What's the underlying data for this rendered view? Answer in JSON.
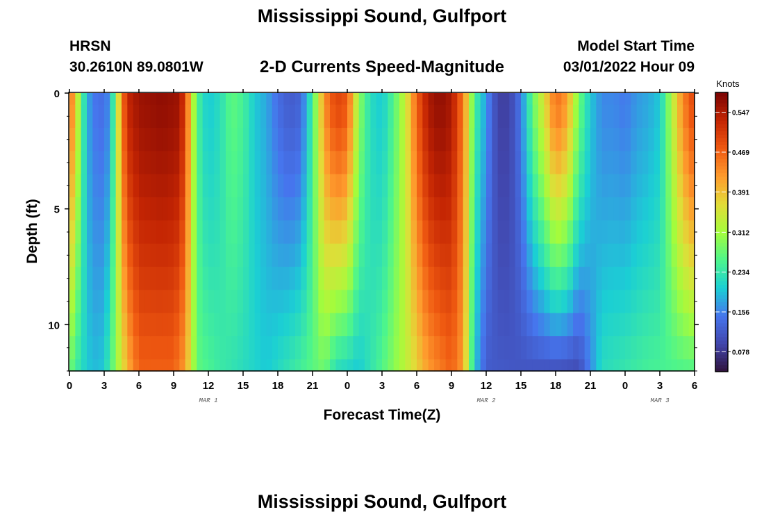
{
  "title": "Mississippi Sound, Gulfport",
  "title_repeat": "Mississippi Sound, Gulfport",
  "station_id": "HRSN",
  "station_coords": "30.2610N  89.0801W",
  "subtitle": "2-D Currents Speed-Magnitude",
  "model_start_label": "Model Start Time",
  "model_start_value": "03/01/2022 Hour 09",
  "chart_data": {
    "type": "heatmap",
    "xlabel": "Forecast Time(Z)",
    "ylabel": "Depth (ft)",
    "x_range_hours": [
      0,
      54
    ],
    "y_range_ft": [
      0,
      12
    ],
    "x_tick_labels": [
      "0",
      "3",
      "6",
      "9",
      "12",
      "15",
      "18",
      "21",
      "0",
      "3",
      "6",
      "9",
      "12",
      "15",
      "18",
      "21",
      "0",
      "3",
      "6"
    ],
    "y_tick_labels": [
      "0",
      "5",
      "10"
    ],
    "date_labels": [
      {
        "text": "MAR 1",
        "hour": 12
      },
      {
        "text": "MAR 2",
        "hour": 36
      },
      {
        "text": "MAR 3",
        "hour": 51
      }
    ],
    "colorbar": {
      "title": "Knots",
      "min": 0.039,
      "max": 0.586,
      "tick_labels": [
        "0.547",
        "0.469",
        "0.391",
        "0.312",
        "0.234",
        "0.156",
        "0.078"
      ],
      "tick_values": [
        0.547,
        0.469,
        0.391,
        0.312,
        0.234,
        0.156,
        0.078
      ]
    },
    "depth_levels_ft": [
      0,
      0.5,
      1.5,
      2.5,
      3.5,
      4.5,
      5.5,
      6.5,
      7.5,
      8.5,
      9.5,
      10.5,
      11.5,
      12
    ],
    "surface_speed_knots_by_hour": [
      {
        "hour": 0,
        "value": 0.47
      },
      {
        "hour": 0.5,
        "value": 0.39
      },
      {
        "hour": 1,
        "value": 0.27
      },
      {
        "hour": 1.5,
        "value": 0.19
      },
      {
        "hour": 2,
        "value": 0.15
      },
      {
        "hour": 3,
        "value": 0.14
      },
      {
        "hour": 3.5,
        "value": 0.17
      },
      {
        "hour": 4,
        "value": 0.3
      },
      {
        "hour": 4.5,
        "value": 0.44
      },
      {
        "hour": 5,
        "value": 0.53
      },
      {
        "hour": 6,
        "value": 0.56
      },
      {
        "hour": 8,
        "value": 0.57
      },
      {
        "hour": 9.5,
        "value": 0.56
      },
      {
        "hour": 10,
        "value": 0.5
      },
      {
        "hour": 10.5,
        "value": 0.37
      },
      {
        "hour": 11,
        "value": 0.26
      },
      {
        "hour": 11.5,
        "value": 0.22
      },
      {
        "hour": 12,
        "value": 0.2
      },
      {
        "hour": 13,
        "value": 0.22
      },
      {
        "hour": 14,
        "value": 0.27
      },
      {
        "hour": 15,
        "value": 0.25
      },
      {
        "hour": 16,
        "value": 0.2
      },
      {
        "hour": 17,
        "value": 0.18
      },
      {
        "hour": 18,
        "value": 0.14
      },
      {
        "hour": 19,
        "value": 0.12
      },
      {
        "hour": 20,
        "value": 0.13
      },
      {
        "hour": 21,
        "value": 0.25
      },
      {
        "hour": 22,
        "value": 0.43
      },
      {
        "hour": 23,
        "value": 0.5
      },
      {
        "hour": 24,
        "value": 0.48
      },
      {
        "hour": 25,
        "value": 0.3
      },
      {
        "hour": 26,
        "value": 0.22
      },
      {
        "hour": 27,
        "value": 0.2
      },
      {
        "hour": 28,
        "value": 0.26
      },
      {
        "hour": 29,
        "value": 0.34
      },
      {
        "hour": 30,
        "value": 0.47
      },
      {
        "hour": 31,
        "value": 0.55
      },
      {
        "hour": 32,
        "value": 0.57
      },
      {
        "hour": 33,
        "value": 0.55
      },
      {
        "hour": 34,
        "value": 0.45
      },
      {
        "hour": 35,
        "value": 0.25
      },
      {
        "hour": 36,
        "value": 0.17
      },
      {
        "hour": 37,
        "value": 0.09
      },
      {
        "hour": 38,
        "value": 0.09
      },
      {
        "hour": 39,
        "value": 0.15
      },
      {
        "hour": 40,
        "value": 0.27
      },
      {
        "hour": 41,
        "value": 0.36
      },
      {
        "hour": 42,
        "value": 0.46
      },
      {
        "hour": 43,
        "value": 0.42
      },
      {
        "hour": 44,
        "value": 0.28
      },
      {
        "hour": 45,
        "value": 0.2
      },
      {
        "hour": 46,
        "value": 0.16
      },
      {
        "hour": 47,
        "value": 0.16
      },
      {
        "hour": 48,
        "value": 0.15
      },
      {
        "hour": 49,
        "value": 0.17
      },
      {
        "hour": 50,
        "value": 0.18
      },
      {
        "hour": 51,
        "value": 0.2
      },
      {
        "hour": 52,
        "value": 0.32
      },
      {
        "hour": 53,
        "value": 0.44
      },
      {
        "hour": 54,
        "value": 0.5
      }
    ],
    "bottom_speed_knots_by_hour": [
      {
        "hour": 0,
        "value": 0.28
      },
      {
        "hour": 1,
        "value": 0.22
      },
      {
        "hour": 2,
        "value": 0.19
      },
      {
        "hour": 3,
        "value": 0.2
      },
      {
        "hour": 4,
        "value": 0.3
      },
      {
        "hour": 5,
        "value": 0.4
      },
      {
        "hour": 6,
        "value": 0.47
      },
      {
        "hour": 9,
        "value": 0.47
      },
      {
        "hour": 10,
        "value": 0.42
      },
      {
        "hour": 11,
        "value": 0.27
      },
      {
        "hour": 13,
        "value": 0.24
      },
      {
        "hour": 15,
        "value": 0.22
      },
      {
        "hour": 17,
        "value": 0.2
      },
      {
        "hour": 20,
        "value": 0.25
      },
      {
        "hour": 22,
        "value": 0.28
      },
      {
        "hour": 23,
        "value": 0.22
      },
      {
        "hour": 25,
        "value": 0.2
      },
      {
        "hour": 27,
        "value": 0.26
      },
      {
        "hour": 29,
        "value": 0.33
      },
      {
        "hour": 31,
        "value": 0.42
      },
      {
        "hour": 33,
        "value": 0.47
      },
      {
        "hour": 34,
        "value": 0.42
      },
      {
        "hour": 35,
        "value": 0.2
      },
      {
        "hour": 36,
        "value": 0.12
      },
      {
        "hour": 40,
        "value": 0.11
      },
      {
        "hour": 44,
        "value": 0.1
      },
      {
        "hour": 45,
        "value": 0.16
      },
      {
        "hour": 46,
        "value": 0.22
      },
      {
        "hour": 50,
        "value": 0.25
      },
      {
        "hour": 54,
        "value": 0.26
      }
    ],
    "surface_layer_depth_ft": 0.8
  }
}
